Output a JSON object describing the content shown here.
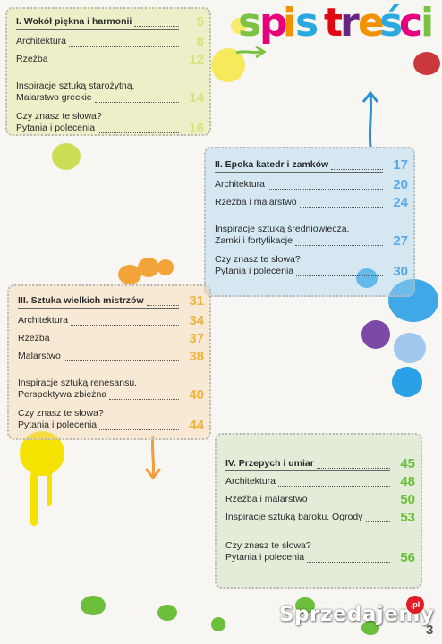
{
  "title": "spis treści",
  "title_letters": [
    {
      "ch": "s",
      "color": "#7cc242"
    },
    {
      "ch": "p",
      "color": "#e6007e"
    },
    {
      "ch": "i",
      "color": "#f39200"
    },
    {
      "ch": "s",
      "color": "#2aa9e0"
    },
    {
      "ch": " ",
      "color": "#000000"
    },
    {
      "ch": "t",
      "color": "#e30613"
    },
    {
      "ch": "r",
      "color": "#662483"
    },
    {
      "ch": "e",
      "color": "#f39200"
    },
    {
      "ch": "ś",
      "color": "#2aa9e0"
    },
    {
      "ch": "c",
      "color": "#e6007e"
    },
    {
      "ch": "i",
      "color": "#7cc242"
    }
  ],
  "sections": [
    {
      "heading": "I. Wokół piękna i harmonii",
      "page": "5",
      "accent": "#d7e37a",
      "items": [
        {
          "lines": [
            "Architektura"
          ],
          "page": "8"
        },
        {
          "lines": [
            "Rzeźba"
          ],
          "page": "12"
        },
        {
          "lines": [
            "Inspiracje sztuką starożytną.",
            "Malarstwo greckie"
          ],
          "page": "14"
        },
        {
          "lines": [
            "Czy znasz te słowa?",
            "Pytania i polecenia"
          ],
          "page": "16"
        }
      ]
    },
    {
      "heading": "II. Epoka katedr i zamków",
      "page": "17",
      "accent": "#5aa9e6",
      "items": [
        {
          "lines": [
            "Architektura"
          ],
          "page": "20"
        },
        {
          "lines": [
            "Rzeźba i malarstwo"
          ],
          "page": "24"
        },
        {
          "lines": [
            "Inspiracje sztuką średniowiecza.",
            "Zamki i fortyfikacje"
          ],
          "page": "27"
        },
        {
          "lines": [
            "Czy znasz te słowa?",
            "Pytania i polecenia"
          ],
          "page": "30"
        }
      ]
    },
    {
      "heading": "III. Sztuka wielkich mistrzów",
      "page": "31",
      "accent": "#f0b43c",
      "items": [
        {
          "lines": [
            "Architektura"
          ],
          "page": "34"
        },
        {
          "lines": [
            "Rzeźba"
          ],
          "page": "37"
        },
        {
          "lines": [
            "Malarstwo"
          ],
          "page": "38"
        },
        {
          "lines": [
            "Inspiracje sztuką renesansu.",
            "Perspektywa zbieżna"
          ],
          "page": "40"
        },
        {
          "lines": [
            "Czy znasz te słowa?",
            "Pytania i polecenia"
          ],
          "page": "44"
        }
      ]
    },
    {
      "heading": "IV. Przepych i umiar",
      "page": "45",
      "accent": "#6bbf3a",
      "items": [
        {
          "lines": [
            "Architektura"
          ],
          "page": "48"
        },
        {
          "lines": [
            "Rzeźba i malarstwo"
          ],
          "page": "50"
        },
        {
          "lines": [
            "Inspiracje sztuką baroku. Ogrody"
          ],
          "page": "53"
        },
        {
          "lines": [
            "Czy znasz te słowa?",
            "Pytania i polecenia"
          ],
          "page": "56"
        }
      ]
    }
  ],
  "page_number": "3",
  "watermark": "Sprzedajemy",
  "watermark_badge": ".pl"
}
